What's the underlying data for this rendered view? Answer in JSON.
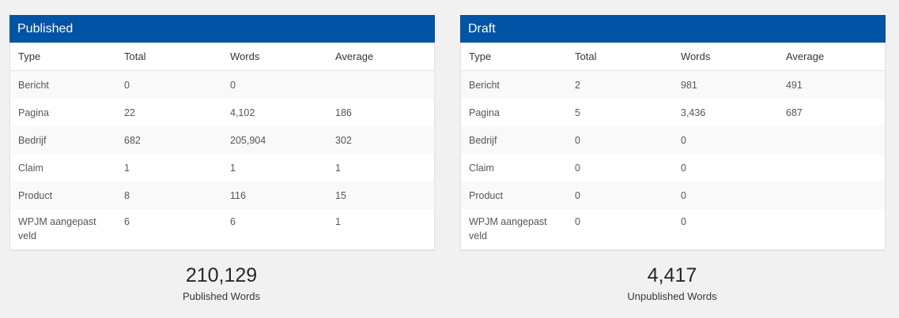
{
  "published": {
    "title": "Published",
    "headers": [
      "Type",
      "Total",
      "Words",
      "Average"
    ],
    "rows": [
      [
        "Bericht",
        "0",
        "0",
        ""
      ],
      [
        "Pagina",
        "22",
        "4,102",
        "186"
      ],
      [
        "Bedrijf",
        "682",
        "205,904",
        "302"
      ],
      [
        "Claim",
        "1",
        "1",
        "1"
      ],
      [
        "Product",
        "8",
        "116",
        "15"
      ],
      [
        "WPJM aangepast veld",
        "6",
        "6",
        "1"
      ]
    ],
    "summary_value": "210,129",
    "summary_label": "Published Words"
  },
  "draft": {
    "title": "Draft",
    "headers": [
      "Type",
      "Total",
      "Words",
      "Average"
    ],
    "rows": [
      [
        "Bericht",
        "2",
        "981",
        "491"
      ],
      [
        "Pagina",
        "5",
        "3,436",
        "687"
      ],
      [
        "Bedrijf",
        "0",
        "0",
        ""
      ],
      [
        "Claim",
        "0",
        "0",
        ""
      ],
      [
        "Product",
        "0",
        "0",
        ""
      ],
      [
        "WPJM aangepast veld",
        "0",
        "0",
        ""
      ]
    ],
    "summary_value": "4,417",
    "summary_label": "Unpublished Words"
  },
  "colors": {
    "header_bg": "#0054a6",
    "page_bg": "#f1f1f1",
    "stripe": "#f9f9f9"
  }
}
